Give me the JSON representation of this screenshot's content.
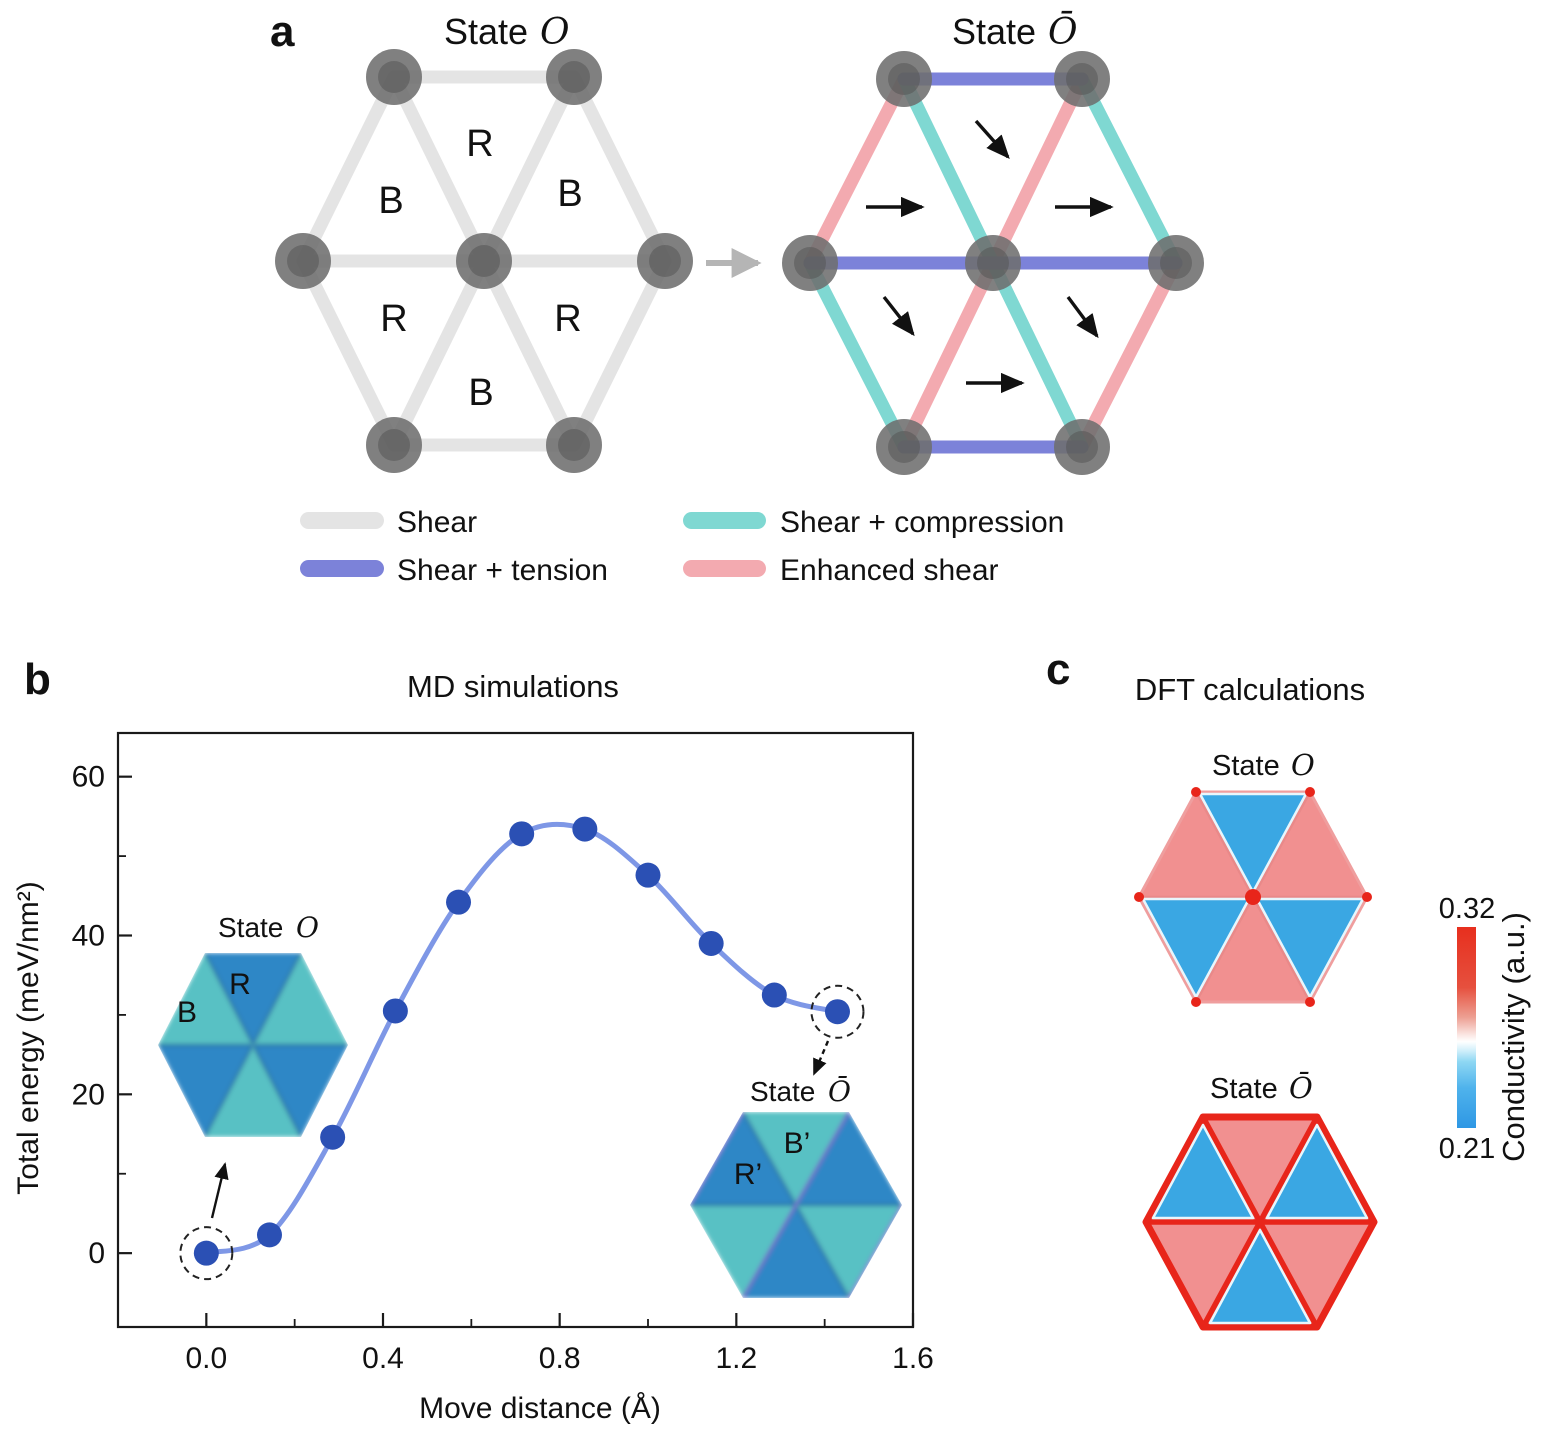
{
  "colors": {
    "bond_shear": "#e4e4e4",
    "bond_shear_tension": "#7c82d9",
    "bond_shear_compression": "#7fd8d2",
    "bond_enhanced_shear": "#f3aab0",
    "node_gray": "#6e6e6e",
    "curve_line": "#7e97e6",
    "curve_marker": "#2b50b4",
    "inset_blue": "#2f87c6",
    "inset_teal": "#58c1c4",
    "domain_wall_purple": "#7b70d3",
    "dft_pink": "#f19090",
    "dft_blue": "#3aa7e3",
    "dft_red": "#e8251a",
    "colorbar_top": "#e72f1e",
    "colorbar_bottom": "#2e97e4"
  },
  "panel_a": {
    "label": "a",
    "left": {
      "title_prefix": "State",
      "title_symbol": "O",
      "triangle_labels": [
        "R",
        "B",
        "B",
        "R",
        "R",
        "B"
      ]
    },
    "right": {
      "title_prefix": "State",
      "title_symbol": "Ō"
    },
    "legend": [
      {
        "label": "Shear",
        "color": "#e4e4e4"
      },
      {
        "label": "Shear + tension",
        "color": "#7c82d9"
      },
      {
        "label": "Shear + compression",
        "color": "#7fd8d2"
      },
      {
        "label": "Enhanced shear",
        "color": "#f3aab0"
      }
    ]
  },
  "panel_b": {
    "label": "b",
    "inset_o": {
      "title_prefix": "State",
      "title_symbol": "O",
      "label_r": "R",
      "label_b": "B"
    },
    "inset_obar": {
      "title_prefix": "State",
      "title_symbol": "Ō",
      "label_r": "R’",
      "label_b": "B’"
    }
  },
  "panel_c": {
    "label": "c",
    "title": "DFT calculations",
    "state_o": {
      "title_prefix": "State",
      "title_symbol": "O"
    },
    "state_obar": {
      "title_prefix": "State",
      "title_symbol": "Ō"
    },
    "colorbar": {
      "max": "0.32",
      "min": "0.21",
      "label": "Conductivity (a.u.)"
    }
  },
  "chart_data": {
    "type": "line",
    "title": "MD simulations",
    "xlabel": "Move distance (Å)",
    "ylabel": "Total energy (meV/nm²)",
    "x": [
      0.0,
      0.143,
      0.286,
      0.428,
      0.571,
      0.714,
      0.857,
      1.0,
      1.143,
      1.286,
      1.429
    ],
    "y": [
      0.0,
      2.3,
      14.6,
      30.5,
      44.2,
      52.8,
      53.4,
      47.6,
      39.0,
      32.5,
      30.4
    ],
    "xlim": [
      -0.2,
      1.6
    ],
    "ylim": [
      -9.3,
      65.5
    ],
    "xticks": [
      0.0,
      0.4,
      0.8,
      1.2,
      1.6
    ],
    "xtick_labels": [
      "0.0",
      "0.4",
      "0.8",
      "1.2",
      "1.6"
    ],
    "yticks": [
      0,
      20,
      40,
      60
    ],
    "ytick_labels": [
      "0",
      "20",
      "40",
      "60"
    ],
    "minor_xticks": [
      0.2,
      0.6,
      1.0,
      1.4
    ],
    "minor_yticks": [
      10,
      30,
      50
    ],
    "grid": false,
    "line_color": "#7e97e6",
    "marker_color": "#2b50b4",
    "circled_points": [
      0,
      10
    ]
  }
}
